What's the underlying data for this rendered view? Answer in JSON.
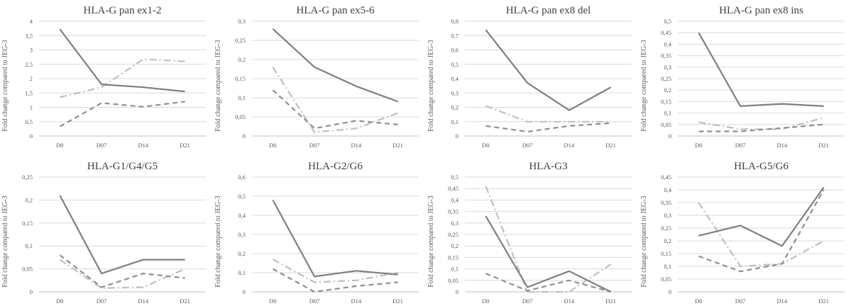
{
  "colors": {
    "series_a": "#7f7f7f",
    "series_b": "#bfbfbf",
    "series_c": "#8f8f8f",
    "grid": "#d9d9d9",
    "text": "#595959"
  },
  "chart_data": [
    {
      "type": "line",
      "title": "HLA-G pan ex1-2",
      "ylabel": "Fold change compared to JEG-3",
      "categories": [
        "D0",
        "D07",
        "D14",
        "D21"
      ],
      "yticks": [
        "0",
        "0,5",
        "1",
        "1,5",
        "2",
        "2,5",
        "3",
        "3,5",
        "4"
      ],
      "ylim": [
        0,
        4
      ],
      "series": [
        {
          "name": "solid",
          "style": "solid",
          "values": [
            3.72,
            1.8,
            1.7,
            1.55
          ]
        },
        {
          "name": "dash-dot",
          "style": "dashdot",
          "values": [
            1.35,
            1.7,
            2.68,
            2.6
          ]
        },
        {
          "name": "dashed",
          "style": "dashed",
          "values": [
            0.33,
            1.15,
            1.02,
            1.2
          ]
        }
      ]
    },
    {
      "type": "line",
      "title": "HLA-G pan ex5-6",
      "ylabel": "Fold change compared to JEG-3",
      "categories": [
        "D0",
        "D07",
        "D14",
        "D21"
      ],
      "yticks": [
        "0",
        "0,05",
        "0,1",
        "0,15",
        "0,2",
        "0,25",
        "0,3"
      ],
      "ylim": [
        0,
        0.3
      ],
      "series": [
        {
          "name": "solid",
          "style": "solid",
          "values": [
            0.28,
            0.18,
            0.13,
            0.09
          ]
        },
        {
          "name": "dash-dot",
          "style": "dashdot",
          "values": [
            0.18,
            0.01,
            0.02,
            0.06
          ]
        },
        {
          "name": "dashed",
          "style": "dashed",
          "values": [
            0.12,
            0.02,
            0.04,
            0.03
          ]
        }
      ]
    },
    {
      "type": "line",
      "title": "HLA-G pan ex8 del",
      "ylabel": "Fold change compared to JEG-3",
      "categories": [
        "D0",
        "D07",
        "D14",
        "D21"
      ],
      "yticks": [
        "0",
        "0,1",
        "0,2",
        "0,3",
        "0,4",
        "0,5",
        "0,6",
        "0,7",
        "0,8"
      ],
      "ylim": [
        0,
        0.8
      ],
      "series": [
        {
          "name": "solid",
          "style": "solid",
          "values": [
            0.74,
            0.37,
            0.18,
            0.34
          ]
        },
        {
          "name": "dash-dot",
          "style": "dashdot",
          "values": [
            0.21,
            0.1,
            0.1,
            0.1
          ]
        },
        {
          "name": "dashed",
          "style": "dashed",
          "values": [
            0.07,
            0.03,
            0.07,
            0.09
          ]
        }
      ]
    },
    {
      "type": "line",
      "title": "HLA-G pan ex8 ins",
      "ylabel": "Fold change compared to JEG-3",
      "categories": [
        "D0",
        "D07",
        "D14",
        "D21"
      ],
      "yticks": [
        "0",
        "0,05",
        "0,1",
        "0,15",
        "0,2",
        "0,25",
        "0,3",
        "0,35",
        "0,4",
        "0,45",
        "0,5"
      ],
      "ylim": [
        0,
        0.5
      ],
      "series": [
        {
          "name": "solid",
          "style": "solid",
          "values": [
            0.45,
            0.13,
            0.14,
            0.13
          ]
        },
        {
          "name": "dash-dot",
          "style": "dashdot",
          "values": [
            0.06,
            0.03,
            0.03,
            0.08
          ]
        },
        {
          "name": "dashed",
          "style": "dashed",
          "values": [
            0.02,
            0.02,
            0.035,
            0.05
          ]
        }
      ]
    },
    {
      "type": "line",
      "title": "HLA-G1/G4/G5",
      "ylabel": "Fold change compared to JEG-3",
      "categories": [
        "D0",
        "D07",
        "D14",
        "D21"
      ],
      "yticks": [
        "0",
        "0,05",
        "0,1",
        "0,15",
        "0,2",
        "0,25"
      ],
      "ylim": [
        0,
        0.25
      ],
      "series": [
        {
          "name": "solid",
          "style": "solid",
          "values": [
            0.21,
            0.04,
            0.07,
            0.07
          ]
        },
        {
          "name": "dash-dot",
          "style": "dashdot",
          "values": [
            0.07,
            0.008,
            0.01,
            0.05
          ]
        },
        {
          "name": "dashed",
          "style": "dashed",
          "values": [
            0.08,
            0.01,
            0.04,
            0.03
          ]
        }
      ]
    },
    {
      "type": "line",
      "title": "HLA-G2/G6",
      "ylabel": "Fold change compared to JEG-3",
      "categories": [
        "D0",
        "D07",
        "D14",
        "D21"
      ],
      "yticks": [
        "0",
        "0,1",
        "0,2",
        "0,3",
        "0,4",
        "0,5",
        "0,6"
      ],
      "ylim": [
        0,
        0.6
      ],
      "series": [
        {
          "name": "solid",
          "style": "solid",
          "values": [
            0.48,
            0.08,
            0.11,
            0.09
          ]
        },
        {
          "name": "dash-dot",
          "style": "dashdot",
          "values": [
            0.17,
            0.05,
            0.06,
            0.1
          ]
        },
        {
          "name": "dashed",
          "style": "dashed",
          "values": [
            0.12,
            0.0,
            0.03,
            0.05
          ]
        }
      ]
    },
    {
      "type": "line",
      "title": "HLA-G3",
      "ylabel": "Fold change compared to JEG-3",
      "categories": [
        "D0",
        "D07",
        "D14",
        "D21"
      ],
      "yticks": [
        "0",
        "0,05",
        "0,1",
        "0,15",
        "0,2",
        "0,25",
        "0,3",
        "0,35",
        "0,4",
        "0,45",
        "0,5"
      ],
      "ylim": [
        0,
        0.5
      ],
      "series": [
        {
          "name": "solid",
          "style": "solid",
          "values": [
            0.33,
            0.02,
            0.09,
            0.0
          ]
        },
        {
          "name": "dash-dot",
          "style": "dashdot",
          "values": [
            0.46,
            0.0,
            0.0,
            0.12
          ]
        },
        {
          "name": "dashed",
          "style": "dashed",
          "values": [
            0.08,
            0.005,
            0.05,
            0.0
          ]
        }
      ]
    },
    {
      "type": "line",
      "title": "HLA-G5/G6",
      "ylabel": "Fold change compared to JEG-3",
      "categories": [
        "D0",
        "D07",
        "D14",
        "D21"
      ],
      "yticks": [
        "0",
        "0,05",
        "0,1",
        "0,15",
        "0,2",
        "0,25",
        "0,3",
        "0,35",
        "0,4",
        "0,45"
      ],
      "ylim": [
        0,
        0.45
      ],
      "series": [
        {
          "name": "solid",
          "style": "solid",
          "values": [
            0.22,
            0.26,
            0.18,
            0.41
          ]
        },
        {
          "name": "dash-dot",
          "style": "dashdot",
          "values": [
            0.35,
            0.1,
            0.11,
            0.2
          ]
        },
        {
          "name": "dashed",
          "style": "dashed",
          "values": [
            0.14,
            0.08,
            0.11,
            0.4
          ]
        }
      ]
    }
  ]
}
